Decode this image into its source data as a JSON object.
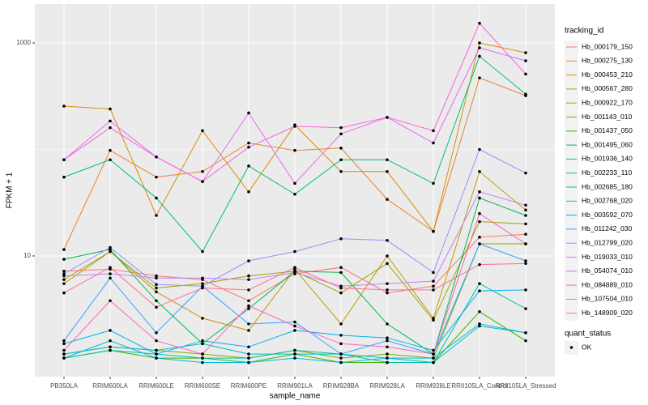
{
  "chart_data": {
    "type": "line",
    "x_label": "sample_name",
    "y_label": "FPKM + 1",
    "categories": [
      "PB350LA",
      "RRIM600LA",
      "RRIM600LE",
      "RRIM600SE",
      "RRIM600PE",
      "RRIM901LA",
      "RRIM928BA",
      "RRIM928LA",
      "RRIM928LE",
      "RRII105LA_Control",
      "RRII105LA_Stressed"
    ],
    "ylim": [
      0.736,
      2318
    ],
    "yticks": [
      10,
      1000
    ],
    "log_y": true,
    "grid": true,
    "legend_position": "right",
    "legend_title": "tracking_id",
    "series": [
      {
        "name": "Hb_000179_150",
        "color": "#F8766D",
        "values": [
          7.2,
          7.5,
          6.5,
          6.0,
          3.8,
          6.8,
          7.8,
          4.5,
          5.2,
          15,
          16
        ]
      },
      {
        "name": "Hb_000275_130",
        "color": "#EA8331",
        "values": [
          11.5,
          98,
          55,
          62,
          115,
          98,
          103,
          34,
          17,
          470,
          320
        ]
      },
      {
        "name": "Hb_000453_210",
        "color": "#D89000",
        "values": [
          255,
          240,
          24,
          150,
          40,
          170,
          62,
          62,
          17,
          1000,
          810
        ]
      },
      {
        "name": "Hb_000567_280",
        "color": "#C09B00",
        "values": [
          6.0,
          11,
          4.6,
          2.6,
          2.0,
          7.5,
          2.3,
          10,
          2.6,
          62,
          27
        ]
      },
      {
        "name": "Hb_000922_170",
        "color": "#A3A500",
        "values": [
          5.5,
          11,
          5.0,
          5.5,
          6.5,
          7.2,
          4.5,
          8.5,
          2.5,
          21,
          20
        ]
      },
      {
        "name": "Hb_001143_010",
        "color": "#7CAE00",
        "values": [
          1.2,
          1.4,
          1.3,
          1.2,
          1.1,
          1.3,
          1.1,
          1.2,
          1.1,
          13,
          13
        ]
      },
      {
        "name": "Hb_001437_050",
        "color": "#39B600",
        "values": [
          1.1,
          1.3,
          1.1,
          1.1,
          1.0,
          1.2,
          1.0,
          1.0,
          1.0,
          3.0,
          1.6
        ]
      },
      {
        "name": "Hb_001495_060",
        "color": "#00BB4E",
        "values": [
          9.3,
          11.5,
          3.8,
          1.5,
          3.2,
          7.2,
          7.0,
          2.3,
          1.2,
          35,
          24
        ]
      },
      {
        "name": "Hb_001936_140",
        "color": "#00BF7D",
        "values": [
          55,
          80,
          35,
          11,
          70,
          38,
          80,
          80,
          48,
          750,
          330
        ]
      },
      {
        "name": "Hb_002233_110",
        "color": "#00C1A3",
        "values": [
          1.1,
          1.3,
          1.2,
          1.1,
          1.1,
          1.3,
          1.2,
          1.0,
          1.0,
          5.5,
          3.2
        ]
      },
      {
        "name": "Hb_002685_180",
        "color": "#00BFC4",
        "values": [
          1.2,
          1.4,
          1.3,
          1.5,
          1.2,
          1.2,
          1.2,
          1.1,
          1.1,
          2.3,
          1.9
        ]
      },
      {
        "name": "Hb_002768_020",
        "color": "#00BAE0",
        "values": [
          1.1,
          1.6,
          1.1,
          1.0,
          1.0,
          1.1,
          1.0,
          1.1,
          1.0,
          2.2,
          1.9
        ]
      },
      {
        "name": "Hb_003592_070",
        "color": "#00B0F6",
        "values": [
          1.5,
          2.0,
          1.2,
          1.6,
          1.4,
          2.0,
          1.8,
          1.7,
          1.3,
          4.7,
          4.8
        ]
      },
      {
        "name": "Hb_011242_030",
        "color": "#35A2FF",
        "values": [
          1.6,
          6.2,
          1.9,
          5.2,
          2.3,
          2.4,
          1.2,
          1.6,
          1.2,
          13,
          9
        ]
      },
      {
        "name": "Hb_012799_020",
        "color": "#9590FF",
        "values": [
          6.8,
          12,
          5.4,
          5.2,
          9,
          11,
          14.5,
          14,
          7,
          100,
          60
        ]
      },
      {
        "name": "Hb_019033_010",
        "color": "#C77CFF",
        "values": [
          6.5,
          6.8,
          6.2,
          6.2,
          6.0,
          7.0,
          5.2,
          5.5,
          5.8,
          40,
          30
        ]
      },
      {
        "name": "Hb_054074_010",
        "color": "#E76BF3",
        "values": [
          80,
          185,
          85,
          50,
          220,
          48,
          140,
          200,
          115,
          900,
          680
        ]
      },
      {
        "name": "Hb_084889_010",
        "color": "#FA62DB",
        "values": [
          80,
          160,
          85,
          50,
          105,
          165,
          160,
          200,
          150,
          1530,
          510
        ]
      },
      {
        "name": "Hb_107504_010",
        "color": "#FF62BC",
        "values": [
          1.3,
          3.8,
          1.6,
          1.2,
          3.4,
          2.2,
          1.5,
          1.4,
          1.2,
          25,
          13
        ]
      },
      {
        "name": "Hb_148909_020",
        "color": "#FF6C91",
        "values": [
          4.5,
          7.8,
          3.3,
          5.0,
          4.8,
          7.8,
          5.0,
          4.8,
          4.8,
          8.3,
          8.5
        ]
      }
    ],
    "legend2_title": "quant_status",
    "legend2_items": [
      "OK"
    ]
  }
}
